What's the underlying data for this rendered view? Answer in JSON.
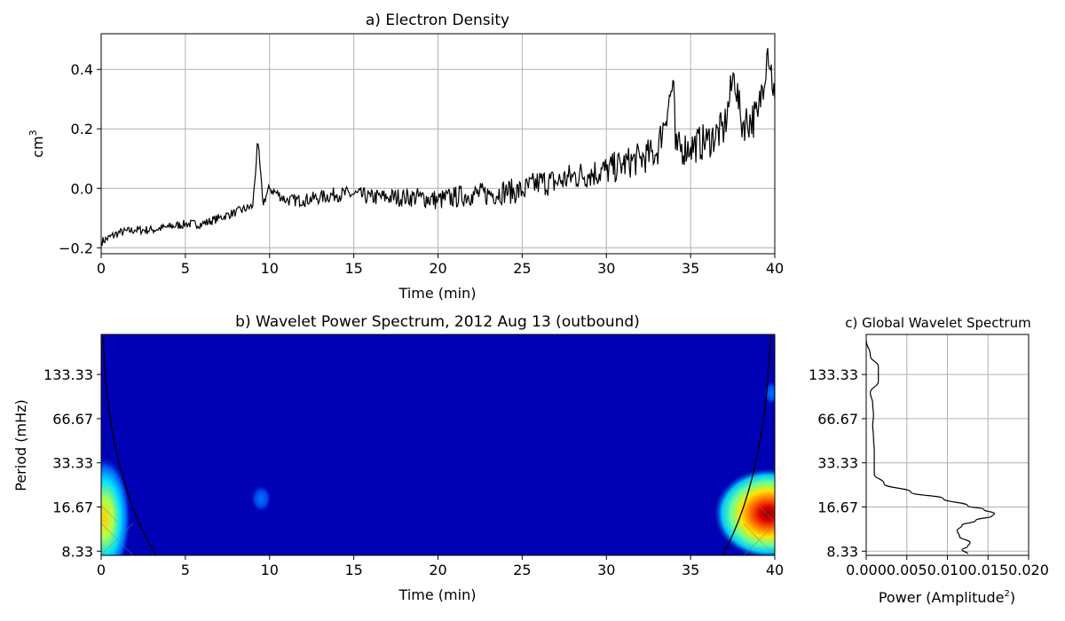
{
  "chart_data": [
    {
      "type": "line",
      "title": "a) Electron Density",
      "xlabel": "Time (min)",
      "ylabel_base": "cm",
      "ylabel_sup": "3",
      "xlim": [
        0,
        40
      ],
      "ylim": [
        -0.22,
        0.52
      ],
      "xticks": [
        0,
        5,
        10,
        15,
        20,
        25,
        30,
        35,
        40
      ],
      "xtick_labels": [
        "0",
        "5",
        "10",
        "15",
        "20",
        "25",
        "30",
        "35",
        "40"
      ],
      "yticks": [
        -0.2,
        0.0,
        0.2,
        0.4
      ],
      "ytick_labels": [
        "−0.2",
        "0.0",
        "0.2",
        "0.4"
      ],
      "grid": true,
      "line_color": "#000000",
      "series": [
        {
          "x": [
            0,
            1,
            2,
            3,
            4,
            5,
            6,
            7,
            8,
            9,
            9.3,
            9.6,
            10,
            11,
            12,
            13,
            14,
            15,
            16,
            17,
            18,
            19,
            20,
            21,
            22,
            23,
            24,
            25,
            26,
            27,
            28,
            29,
            30,
            31,
            32,
            33,
            34,
            34.1,
            35,
            36,
            37,
            37.6,
            38,
            39,
            39.6,
            40
          ],
          "y": [
            -0.18,
            -0.15,
            -0.14,
            -0.14,
            -0.13,
            -0.12,
            -0.12,
            -0.1,
            -0.08,
            -0.06,
            0.16,
            -0.05,
            0.0,
            -0.04,
            -0.04,
            -0.03,
            -0.02,
            -0.02,
            -0.03,
            -0.03,
            -0.03,
            -0.03,
            -0.04,
            -0.03,
            -0.02,
            -0.02,
            -0.01,
            -0.01,
            0.02,
            0.02,
            0.04,
            0.05,
            0.06,
            0.08,
            0.1,
            0.12,
            0.36,
            0.13,
            0.14,
            0.16,
            0.2,
            0.39,
            0.22,
            0.24,
            0.48,
            0.3
          ]
        }
      ]
    },
    {
      "type": "heatmap",
      "title": "b) Wavelet Power Spectrum, 2012 Aug 13 (outbound)",
      "xlabel": "Time (min)",
      "ylabel": "Period (mHz)",
      "xlim": [
        0,
        40
      ],
      "xticks": [
        0,
        5,
        10,
        15,
        20,
        25,
        30,
        35,
        40
      ],
      "xtick_labels": [
        "0",
        "5",
        "10",
        "15",
        "20",
        "25",
        "30",
        "35",
        "40"
      ],
      "yticks": [
        133.33,
        66.67,
        33.33,
        16.67,
        8.33
      ],
      "ytick_labels": [
        "133.33",
        "66.67",
        "33.33",
        "16.67",
        "8.33"
      ],
      "colormap": "jet",
      "background_color": "#0000b4",
      "features": [
        {
          "time": 39.6,
          "period": 15.0,
          "level": "max"
        },
        {
          "time": 0.2,
          "period": 14.0,
          "level": "medium"
        },
        {
          "time": 9.5,
          "period": 19.0,
          "level": "low"
        },
        {
          "time": 39.8,
          "period": 100.0,
          "level": "low"
        }
      ],
      "cone_color": "#000000"
    },
    {
      "type": "line",
      "title": "c) Global Wavelet Spectrum",
      "xlabel_base": "Power (Amplitude",
      "xlabel_sup": "2",
      "xlabel_end": ")",
      "xlim": [
        0,
        0.02
      ],
      "xticks": [
        0.0,
        0.005,
        0.01,
        0.015,
        0.02
      ],
      "xtick_labels": [
        "0.000",
        "0.005",
        "0.010",
        "0.015",
        "0.020"
      ],
      "yticks": [
        133.33,
        66.67,
        33.33,
        16.67,
        8.33
      ],
      "ytick_labels": [
        "133.33",
        "66.67",
        "33.33",
        "16.67",
        "8.33"
      ],
      "grid": true,
      "series": [
        {
          "period": [
            230,
            180,
            150,
            120,
            100,
            85,
            70,
            60,
            50,
            40,
            33,
            28,
            24,
            21,
            19,
            17,
            16,
            15,
            14.5,
            13.5,
            12.5,
            11.5,
            10.5,
            9.5,
            9,
            8.5,
            8
          ],
          "power": [
            0.0,
            0.0005,
            0.0015,
            0.0015,
            0.0005,
            0.0008,
            0.0009,
            0.0008,
            0.0009,
            0.001,
            0.001,
            0.001,
            0.0022,
            0.0055,
            0.0095,
            0.0125,
            0.0145,
            0.0158,
            0.0155,
            0.0135,
            0.0118,
            0.0112,
            0.0115,
            0.0128,
            0.0125,
            0.0118,
            0.0125
          ]
        }
      ]
    }
  ]
}
